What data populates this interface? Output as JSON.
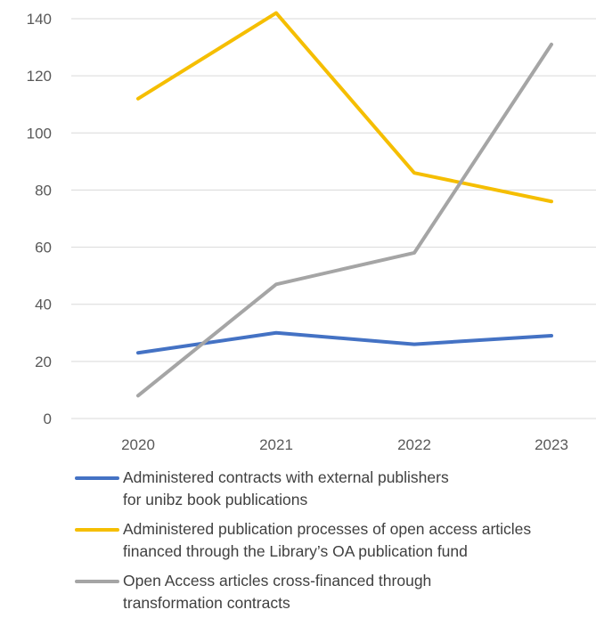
{
  "chart_data": {
    "type": "line",
    "x": [
      "2020",
      "2021",
      "2022",
      "2023"
    ],
    "ylim": [
      0,
      140
    ],
    "yticks": [
      0,
      20,
      40,
      60,
      80,
      100,
      120,
      140
    ],
    "grid": true,
    "legend_position": "bottom",
    "series": [
      {
        "color": "#4472C4",
        "values": [
          23,
          30,
          26,
          29
        ],
        "legend_lines": [
          "Administered contracts with external publishers",
          "for unibz book publications"
        ]
      },
      {
        "color": "#F5BE00",
        "values": [
          112,
          142,
          86,
          76
        ],
        "legend_lines": [
          "Administered publication processes of open access articles",
          "financed through the Library’s OA publication fund"
        ]
      },
      {
        "color": "#A5A5A5",
        "values": [
          8,
          47,
          58,
          131
        ],
        "legend_lines": [
          "Open Access articles cross-financed through",
          "transformation contracts"
        ]
      }
    ]
  }
}
